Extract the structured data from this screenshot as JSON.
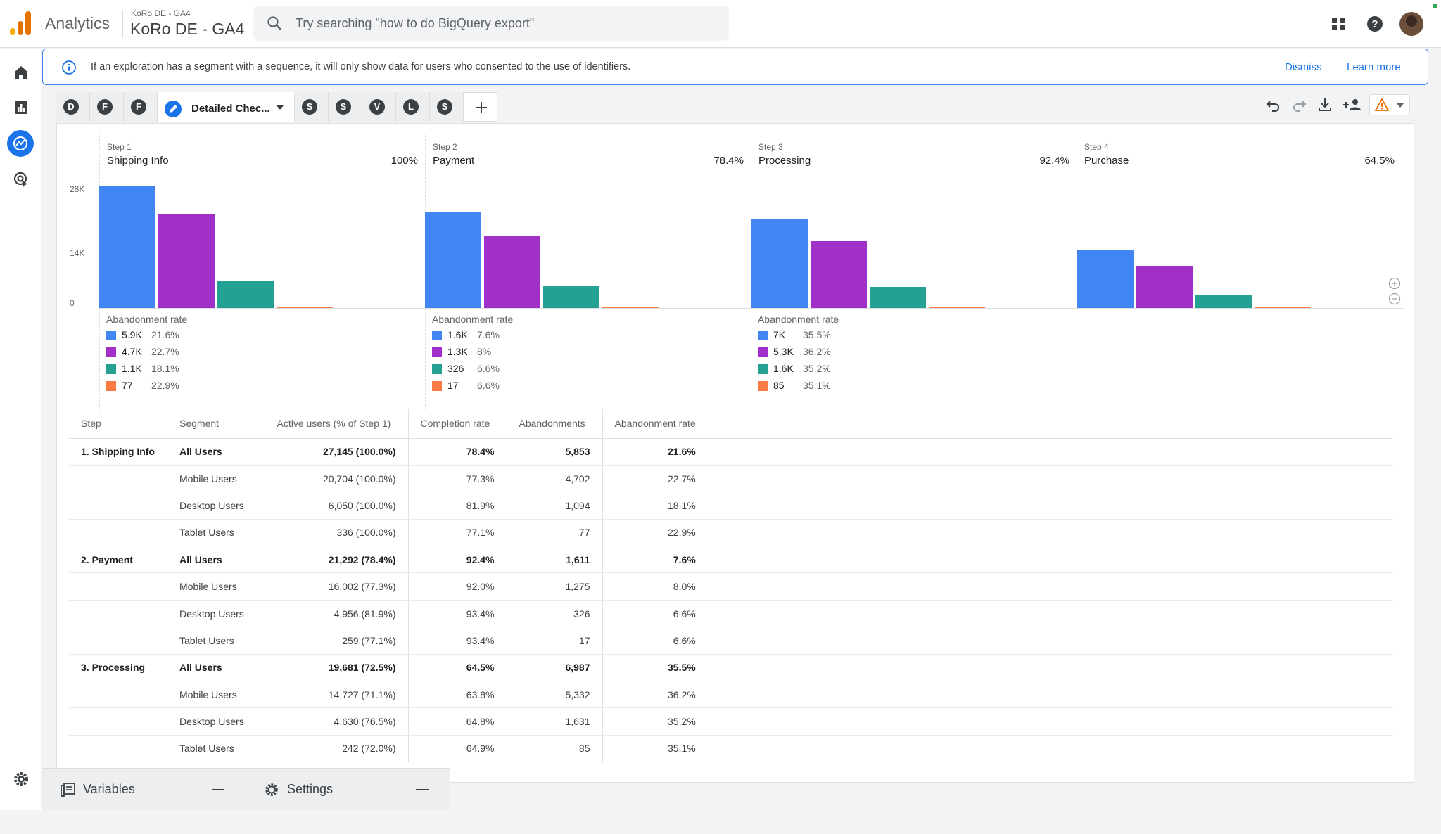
{
  "app": {
    "name": "Analytics",
    "account_small": "KoRo DE - GA4",
    "account_big": "KoRo DE - GA4"
  },
  "search": {
    "placeholder": "Try searching \"how to do BigQuery export\""
  },
  "banner": {
    "text": "If an exploration has a segment with a sequence, it will only show data for users who consented to the use of identifiers.",
    "dismiss": "Dismiss",
    "learn_more": "Learn more"
  },
  "tabs": [
    {
      "letter": "D"
    },
    {
      "letter": "F"
    },
    {
      "letter": "F"
    },
    {
      "label": "Detailed Chec..."
    },
    {
      "letter": "S"
    },
    {
      "letter": "S"
    },
    {
      "letter": "V"
    },
    {
      "letter": "L"
    },
    {
      "letter": "S"
    }
  ],
  "colors": {
    "all": "#4285f4",
    "mobile": "#a130c8",
    "desktop": "#24a192",
    "tablet": "#fa7b43",
    "accent": "#1a73e8"
  },
  "chart_data": {
    "type": "bar",
    "ylim": [
      0,
      28000
    ],
    "yticks": [
      "28K",
      "14K",
      "0"
    ],
    "steps": [
      {
        "num": "Step 1",
        "name": "Shipping Info",
        "pct": "100%"
      },
      {
        "num": "Step 2",
        "name": "Payment",
        "pct": "78.4%"
      },
      {
        "num": "Step 3",
        "name": "Processing",
        "pct": "92.4%"
      },
      {
        "num": "Step 4",
        "name": "Purchase",
        "pct": "64.5%"
      }
    ],
    "series": [
      {
        "name": "All Users",
        "values": [
          27145,
          21292,
          19681,
          12694
        ]
      },
      {
        "name": "Mobile Users",
        "values": [
          20704,
          16002,
          14727,
          9395
        ]
      },
      {
        "name": "Desktop Users",
        "values": [
          6050,
          4956,
          4630,
          2999
        ]
      },
      {
        "name": "Tablet Users",
        "values": [
          336,
          259,
          242,
          157
        ]
      }
    ],
    "abandonment_title": "Abandonment rate",
    "abandonment": [
      [
        {
          "v": "5.9K",
          "r": "21.6%"
        },
        {
          "v": "4.7K",
          "r": "22.7%"
        },
        {
          "v": "1.1K",
          "r": "18.1%"
        },
        {
          "v": "77",
          "r": "22.9%"
        }
      ],
      [
        {
          "v": "1.6K",
          "r": "7.6%"
        },
        {
          "v": "1.3K",
          "r": "8%"
        },
        {
          "v": "326",
          "r": "6.6%"
        },
        {
          "v": "17",
          "r": "6.6%"
        }
      ],
      [
        {
          "v": "7K",
          "r": "35.5%"
        },
        {
          "v": "5.3K",
          "r": "36.2%"
        },
        {
          "v": "1.6K",
          "r": "35.2%"
        },
        {
          "v": "85",
          "r": "35.1%"
        }
      ]
    ]
  },
  "table": {
    "headers": [
      "Step",
      "Segment",
      "Active users (% of Step 1)",
      "Completion rate",
      "Abandonments",
      "Abandonment rate"
    ],
    "rows": [
      {
        "step": "1. Shipping Info",
        "segment": "All Users",
        "active": "27,145 (100.0%)",
        "completion": "78.4%",
        "abandon": "5,853",
        "rate": "21.6%",
        "bold": true
      },
      {
        "step": "",
        "segment": "Mobile Users",
        "active": "20,704 (100.0%)",
        "completion": "77.3%",
        "abandon": "4,702",
        "rate": "22.7%"
      },
      {
        "step": "",
        "segment": "Desktop Users",
        "active": "6,050 (100.0%)",
        "completion": "81.9%",
        "abandon": "1,094",
        "rate": "18.1%"
      },
      {
        "step": "",
        "segment": "Tablet Users",
        "active": "336 (100.0%)",
        "completion": "77.1%",
        "abandon": "77",
        "rate": "22.9%"
      },
      {
        "step": "2. Payment",
        "segment": "All Users",
        "active": "21,292 (78.4%)",
        "completion": "92.4%",
        "abandon": "1,611",
        "rate": "7.6%",
        "bold": true
      },
      {
        "step": "",
        "segment": "Mobile Users",
        "active": "16,002 (77.3%)",
        "completion": "92.0%",
        "abandon": "1,275",
        "rate": "8.0%"
      },
      {
        "step": "",
        "segment": "Desktop Users",
        "active": "4,956 (81.9%)",
        "completion": "93.4%",
        "abandon": "326",
        "rate": "6.6%"
      },
      {
        "step": "",
        "segment": "Tablet Users",
        "active": "259 (77.1%)",
        "completion": "93.4%",
        "abandon": "17",
        "rate": "6.6%"
      },
      {
        "step": "3. Processing",
        "segment": "All Users",
        "active": "19,681 (72.5%)",
        "completion": "64.5%",
        "abandon": "6,987",
        "rate": "35.5%",
        "bold": true
      },
      {
        "step": "",
        "segment": "Mobile Users",
        "active": "14,727 (71.1%)",
        "completion": "63.8%",
        "abandon": "5,332",
        "rate": "36.2%"
      },
      {
        "step": "",
        "segment": "Desktop Users",
        "active": "4,630 (76.5%)",
        "completion": "64.8%",
        "abandon": "1,631",
        "rate": "35.2%"
      },
      {
        "step": "",
        "segment": "Tablet Users",
        "active": "242 (72.0%)",
        "completion": "64.9%",
        "abandon": "85",
        "rate": "35.1%"
      }
    ]
  },
  "bottom": {
    "variables": "Variables",
    "settings": "Settings"
  }
}
